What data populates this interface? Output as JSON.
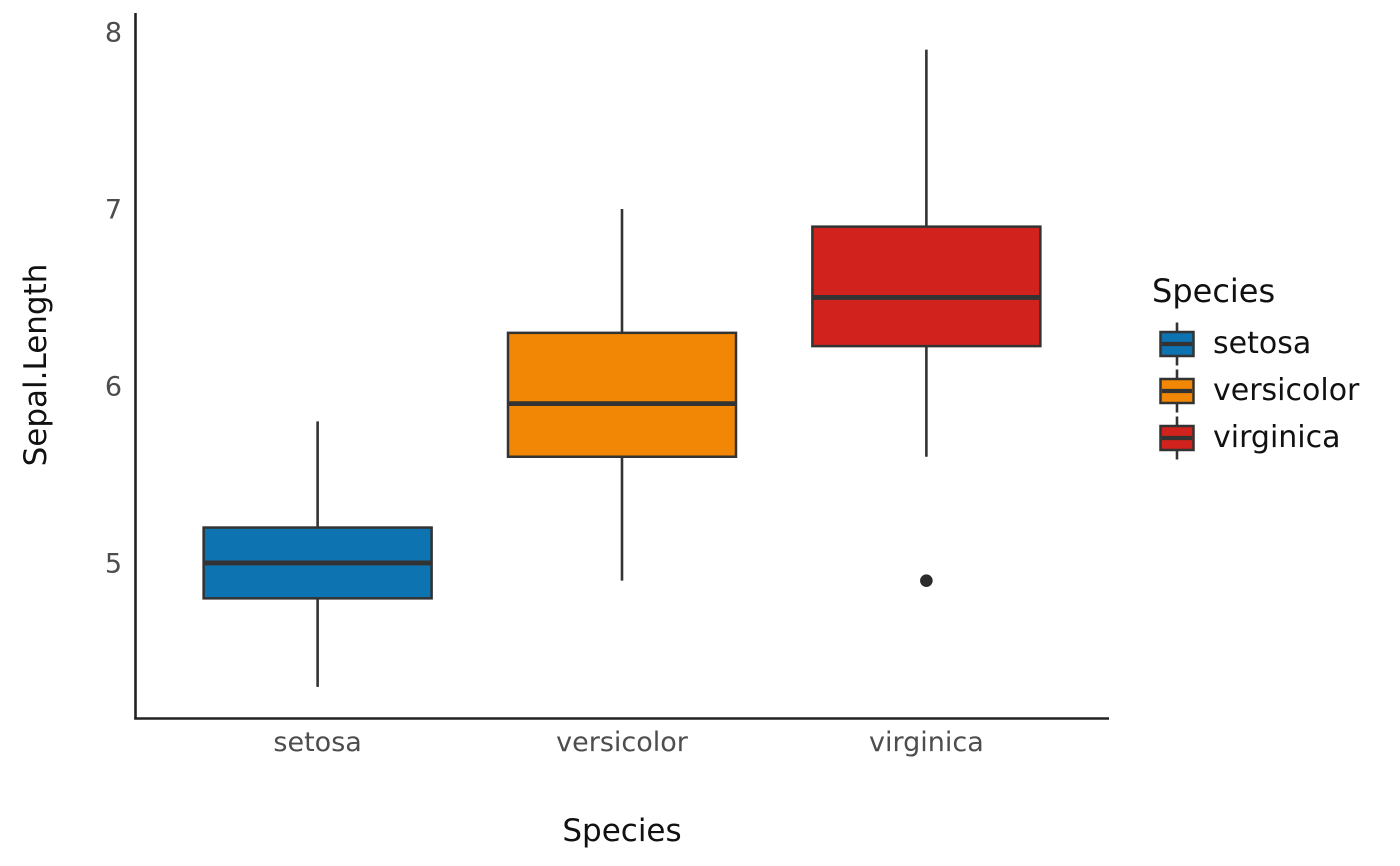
{
  "chart_data": {
    "type": "boxplot",
    "xlabel": "Species",
    "ylabel": "Sepal.Length",
    "categories": [
      "setosa",
      "versicolor",
      "virginica"
    ],
    "y_ticks": [
      5,
      6,
      7,
      8
    ],
    "ylim": [
      4.124,
      8.107
    ],
    "grid": false,
    "series": [
      {
        "name": "setosa",
        "color": "#0d73b1",
        "whisker_low": 4.3,
        "q1": 4.8,
        "median": 5.0,
        "q3": 5.2,
        "whisker_high": 5.8,
        "outliers": []
      },
      {
        "name": "versicolor",
        "color": "#f28705",
        "whisker_low": 4.9,
        "q1": 5.6,
        "median": 5.9,
        "q3": 6.3,
        "whisker_high": 7.0,
        "outliers": []
      },
      {
        "name": "virginica",
        "color": "#d1221e",
        "whisker_low": 5.6,
        "q1": 6.225,
        "median": 6.5,
        "q3": 6.9,
        "whisker_high": 7.9,
        "outliers": [
          4.9
        ]
      }
    ],
    "legend": {
      "title": "Species",
      "position": "right",
      "entries": [
        "setosa",
        "versicolor",
        "virginica"
      ]
    }
  },
  "styles": {
    "box_stroke": "#333333",
    "axis_line_color": "#222222",
    "tick_label_color": "#4d4d4d",
    "title_color": "#111111",
    "outlier_color": "#2b2b2b",
    "background": "#ffffff"
  }
}
